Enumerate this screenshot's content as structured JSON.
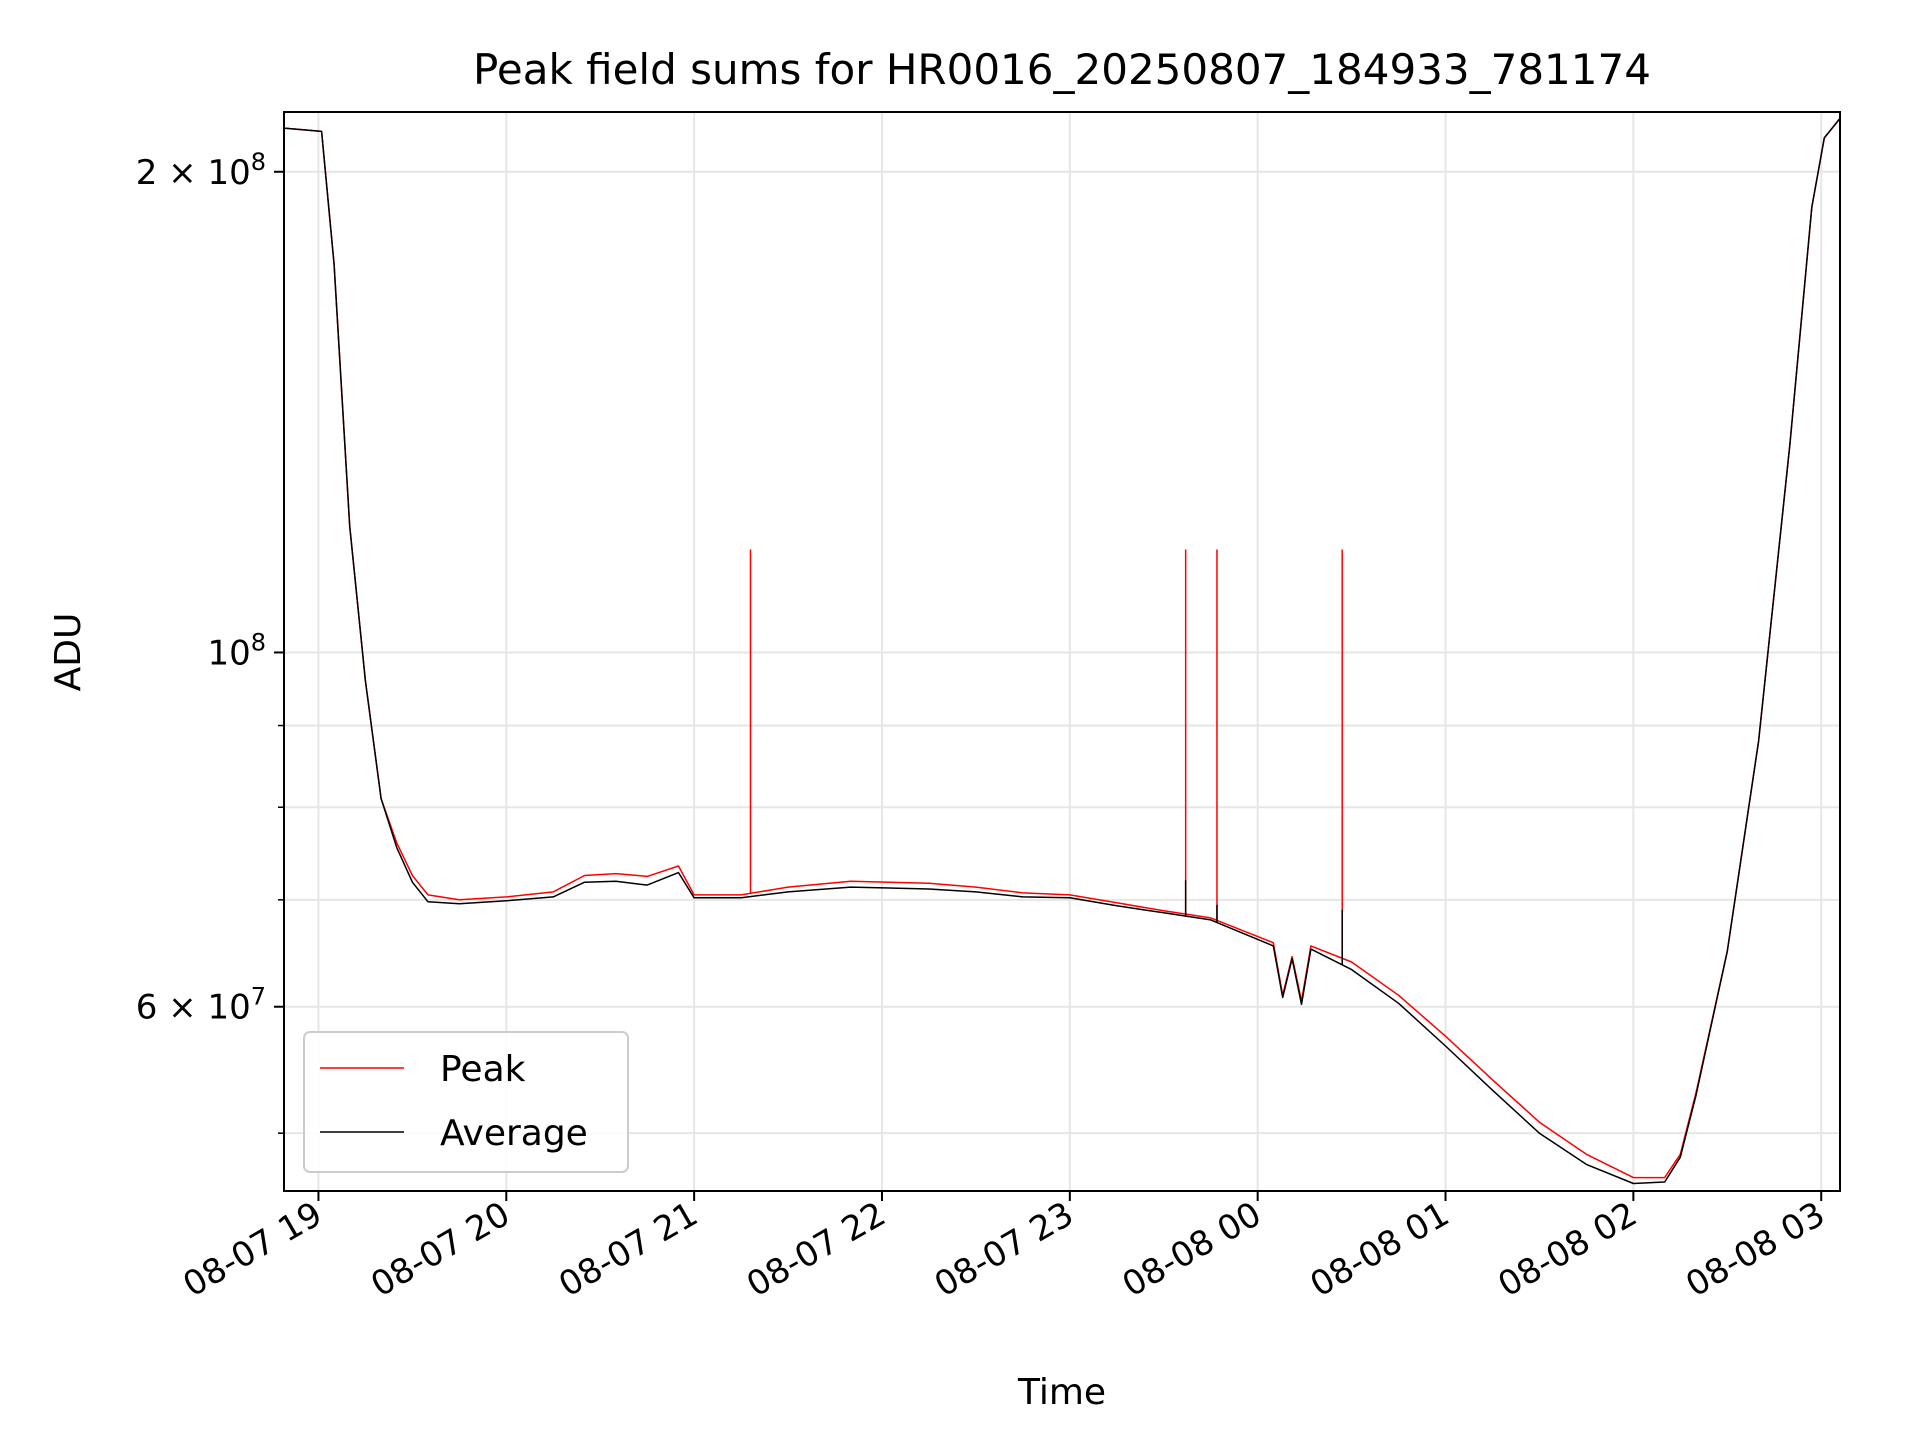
{
  "chart_data": {
    "type": "line",
    "title": "Peak field sums for HR0016_20250807_184933_781174",
    "xlabel": "Time",
    "ylabel": "ADU",
    "yscale": "log",
    "xlim": [
      "2025-08-07 18:49",
      "2025-08-08 03:06"
    ],
    "ylim": [
      46000000,
      218000000
    ],
    "grid": true,
    "legend_position": "lower-left",
    "x_ticks": [
      {
        "t": "2025-08-07 19:00",
        "label": "08-07 19"
      },
      {
        "t": "2025-08-07 20:00",
        "label": "08-07 20"
      },
      {
        "t": "2025-08-07 21:00",
        "label": "08-07 21"
      },
      {
        "t": "2025-08-07 22:00",
        "label": "08-07 22"
      },
      {
        "t": "2025-08-07 23:00",
        "label": "08-07 23"
      },
      {
        "t": "2025-08-08 00:00",
        "label": "08-08 00"
      },
      {
        "t": "2025-08-08 01:00",
        "label": "08-08 01"
      },
      {
        "t": "2025-08-08 02:00",
        "label": "08-08 02"
      },
      {
        "t": "2025-08-08 03:00",
        "label": "08-08 03"
      }
    ],
    "y_ticks_major": [
      {
        "v": 60000000,
        "base": "6 × 10",
        "exp": "7"
      },
      {
        "v": 100000000,
        "base": "10",
        "exp": "8"
      },
      {
        "v": 200000000,
        "base": "2 × 10",
        "exp": "8"
      }
    ],
    "y_ticks_minor": [
      50000000,
      70000000,
      80000000,
      90000000
    ],
    "series": [
      {
        "name": "Peak",
        "color": "#ff0000",
        "points": [
          [
            "2025-08-07 18:49",
            213000000
          ],
          [
            "2025-08-07 19:01",
            212000000
          ],
          [
            "2025-08-07 19:05",
            175000000
          ],
          [
            "2025-08-07 19:10",
            120000000
          ],
          [
            "2025-08-07 19:15",
            96000000
          ],
          [
            "2025-08-07 19:20",
            81000000
          ],
          [
            "2025-08-07 19:25",
            76000000
          ],
          [
            "2025-08-07 19:30",
            72500000
          ],
          [
            "2025-08-07 19:35",
            70500000
          ],
          [
            "2025-08-07 19:45",
            70000000
          ],
          [
            "2025-08-07 20:00",
            70300000
          ],
          [
            "2025-08-07 20:15",
            70800000
          ],
          [
            "2025-08-07 20:25",
            72500000
          ],
          [
            "2025-08-07 20:35",
            72700000
          ],
          [
            "2025-08-07 20:45",
            72400000
          ],
          [
            "2025-08-07 20:55",
            73500000
          ],
          [
            "2025-08-07 21:00",
            70500000
          ],
          [
            "2025-08-07 21:15",
            70500000
          ],
          [
            "2025-08-07 21:30",
            71300000
          ],
          [
            "2025-08-07 21:50",
            71900000
          ],
          [
            "2025-08-07 22:15",
            71700000
          ],
          [
            "2025-08-07 22:30",
            71300000
          ],
          [
            "2025-08-07 22:45",
            70700000
          ],
          [
            "2025-08-07 23:00",
            70500000
          ],
          [
            "2025-08-07 23:15",
            69700000
          ],
          [
            "2025-08-07 23:30",
            68900000
          ],
          [
            "2025-08-07 23:45",
            68200000
          ],
          [
            "2025-08-08 00:05",
            65800000
          ],
          [
            "2025-08-08 00:08",
            61000000
          ],
          [
            "2025-08-08 00:11",
            64500000
          ],
          [
            "2025-08-08 00:14",
            60500000
          ],
          [
            "2025-08-08 00:17",
            65500000
          ],
          [
            "2025-08-08 00:30",
            64000000
          ],
          [
            "2025-08-08 00:45",
            61000000
          ],
          [
            "2025-08-08 01:00",
            57500000
          ],
          [
            "2025-08-08 01:15",
            54000000
          ],
          [
            "2025-08-08 01:30",
            50800000
          ],
          [
            "2025-08-08 01:45",
            48500000
          ],
          [
            "2025-08-08 02:00",
            46900000
          ],
          [
            "2025-08-08 02:10",
            46900000
          ],
          [
            "2025-08-08 02:15",
            48500000
          ],
          [
            "2025-08-08 02:20",
            53000000
          ],
          [
            "2025-08-08 02:30",
            65000000
          ],
          [
            "2025-08-08 02:40",
            88000000
          ],
          [
            "2025-08-08 02:50",
            135000000
          ],
          [
            "2025-08-08 02:57",
            190000000
          ],
          [
            "2025-08-08 03:01",
            210000000
          ],
          [
            "2025-08-08 03:06",
            216000000
          ]
        ],
        "spikes": [
          {
            "t": "2025-08-07 21:18",
            "v": 116000000
          },
          {
            "t": "2025-08-07 23:37",
            "v": 116000000
          },
          {
            "t": "2025-08-07 23:47",
            "v": 116000000
          },
          {
            "t": "2025-08-08 00:27",
            "v": 116000000
          }
        ]
      },
      {
        "name": "Average",
        "color": "#000000",
        "points": [
          [
            "2025-08-07 18:49",
            213000000
          ],
          [
            "2025-08-07 19:01",
            212000000
          ],
          [
            "2025-08-07 19:05",
            175000000
          ],
          [
            "2025-08-07 19:10",
            120000000
          ],
          [
            "2025-08-07 19:15",
            96000000
          ],
          [
            "2025-08-07 19:20",
            81000000
          ],
          [
            "2025-08-07 19:25",
            75500000
          ],
          [
            "2025-08-07 19:30",
            71800000
          ],
          [
            "2025-08-07 19:35",
            69800000
          ],
          [
            "2025-08-07 19:45",
            69600000
          ],
          [
            "2025-08-07 20:00",
            69900000
          ],
          [
            "2025-08-07 20:15",
            70300000
          ],
          [
            "2025-08-07 20:25",
            71800000
          ],
          [
            "2025-08-07 20:35",
            71900000
          ],
          [
            "2025-08-07 20:45",
            71500000
          ],
          [
            "2025-08-07 20:55",
            72800000
          ],
          [
            "2025-08-07 21:00",
            70200000
          ],
          [
            "2025-08-07 21:15",
            70200000
          ],
          [
            "2025-08-07 21:30",
            70800000
          ],
          [
            "2025-08-07 21:50",
            71300000
          ],
          [
            "2025-08-07 22:15",
            71100000
          ],
          [
            "2025-08-07 22:30",
            70800000
          ],
          [
            "2025-08-07 22:45",
            70300000
          ],
          [
            "2025-08-07 23:00",
            70200000
          ],
          [
            "2025-08-07 23:15",
            69400000
          ],
          [
            "2025-08-07 23:30",
            68700000
          ],
          [
            "2025-08-07 23:45",
            68000000
          ],
          [
            "2025-08-08 00:05",
            65500000
          ],
          [
            "2025-08-08 00:08",
            60800000
          ],
          [
            "2025-08-08 00:11",
            64300000
          ],
          [
            "2025-08-08 00:14",
            60200000
          ],
          [
            "2025-08-08 00:17",
            65200000
          ],
          [
            "2025-08-08 00:30",
            63300000
          ],
          [
            "2025-08-08 00:45",
            60300000
          ],
          [
            "2025-08-08 01:00",
            56700000
          ],
          [
            "2025-08-08 01:15",
            53200000
          ],
          [
            "2025-08-08 01:30",
            50000000
          ],
          [
            "2025-08-08 01:45",
            47800000
          ],
          [
            "2025-08-08 02:00",
            46500000
          ],
          [
            "2025-08-08 02:10",
            46600000
          ],
          [
            "2025-08-08 02:15",
            48300000
          ],
          [
            "2025-08-08 02:20",
            52800000
          ],
          [
            "2025-08-08 02:30",
            65000000
          ],
          [
            "2025-08-08 02:40",
            88000000
          ],
          [
            "2025-08-08 02:50",
            135000000
          ],
          [
            "2025-08-08 02:57",
            190000000
          ],
          [
            "2025-08-08 03:01",
            210000000
          ],
          [
            "2025-08-08 03:06",
            216000000
          ]
        ],
        "spikes": [
          {
            "t": "2025-08-07 23:37",
            "v": 72000000
          },
          {
            "t": "2025-08-07 23:47",
            "v": 69500000
          },
          {
            "t": "2025-08-08 00:27",
            "v": 69000000
          }
        ]
      }
    ]
  }
}
